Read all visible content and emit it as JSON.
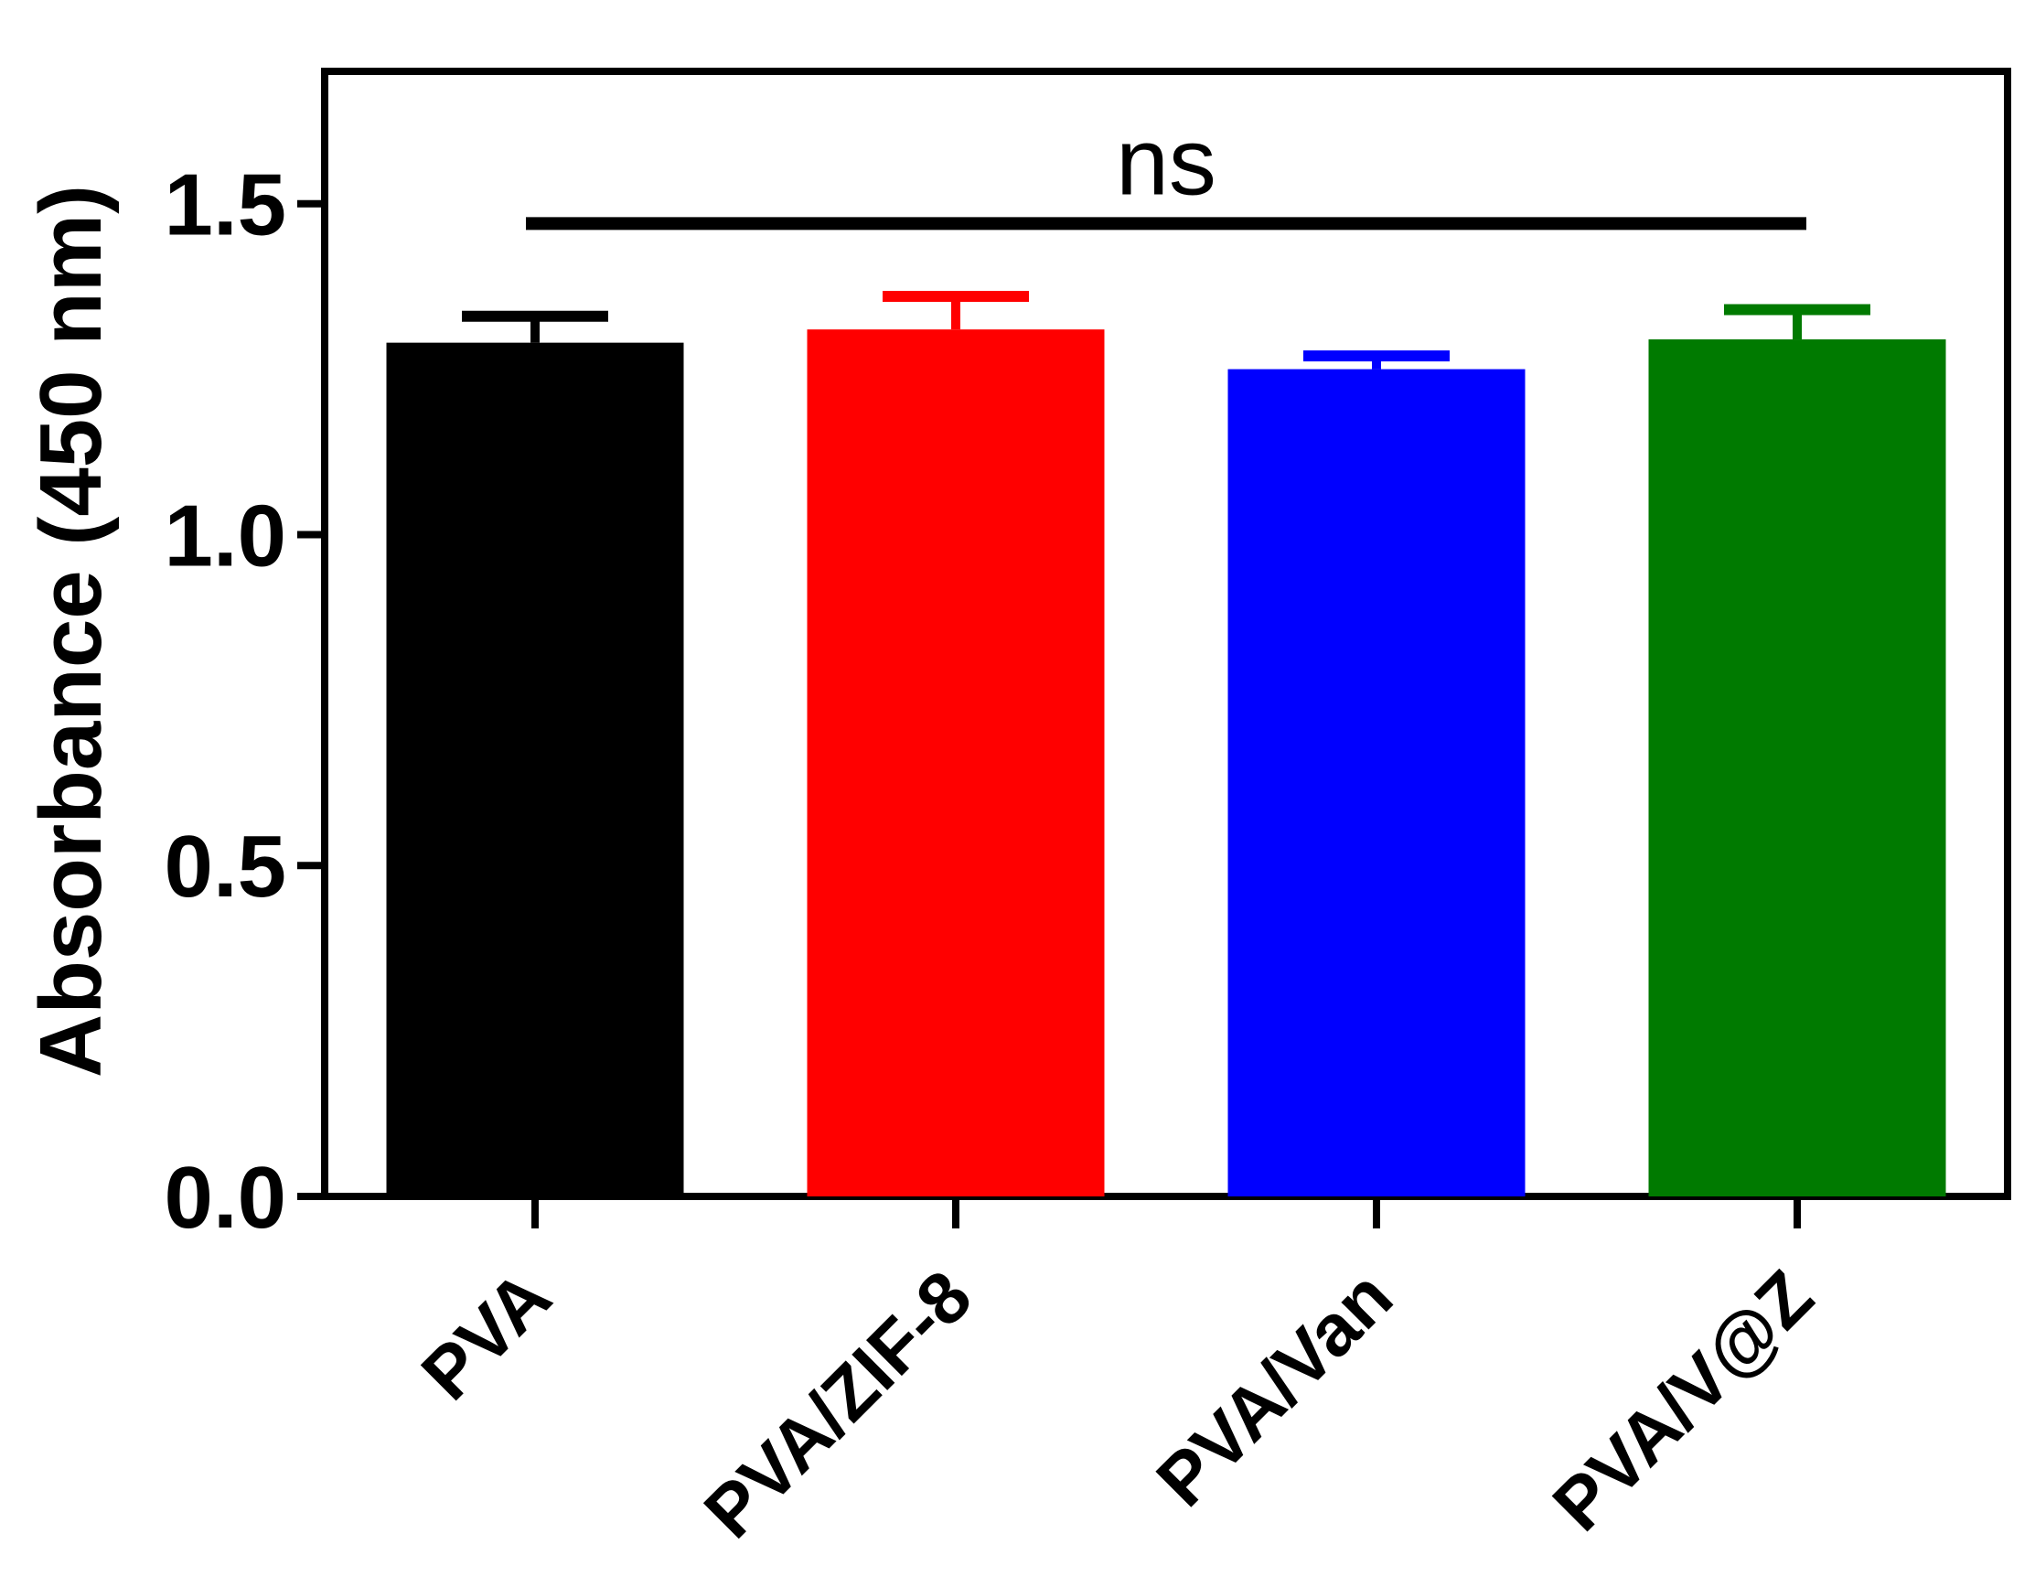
{
  "chart_data": {
    "type": "bar",
    "title": "",
    "xlabel": "",
    "ylabel": "Absorbance (450 nm)",
    "ylim": [
      0,
      1.7
    ],
    "yticks": [
      0.0,
      0.5,
      1.0,
      1.5
    ],
    "ytick_labels": [
      "0.0",
      "0.5",
      "1.0",
      "1.5"
    ],
    "grid": false,
    "legend": "none",
    "categories": [
      "PVA",
      "PVA/ZIF-8",
      "PVA/Van",
      "PVA/V@Z"
    ],
    "values": [
      1.29,
      1.31,
      1.25,
      1.295
    ],
    "error_upper": [
      0.04,
      0.05,
      0.02,
      0.045
    ],
    "colors": [
      "#000000",
      "#ff0000",
      "#0000ff",
      "#007a00"
    ],
    "annotations": [
      {
        "text": "ns",
        "from_category": 0,
        "to_category": 3,
        "y": 1.47
      }
    ]
  }
}
